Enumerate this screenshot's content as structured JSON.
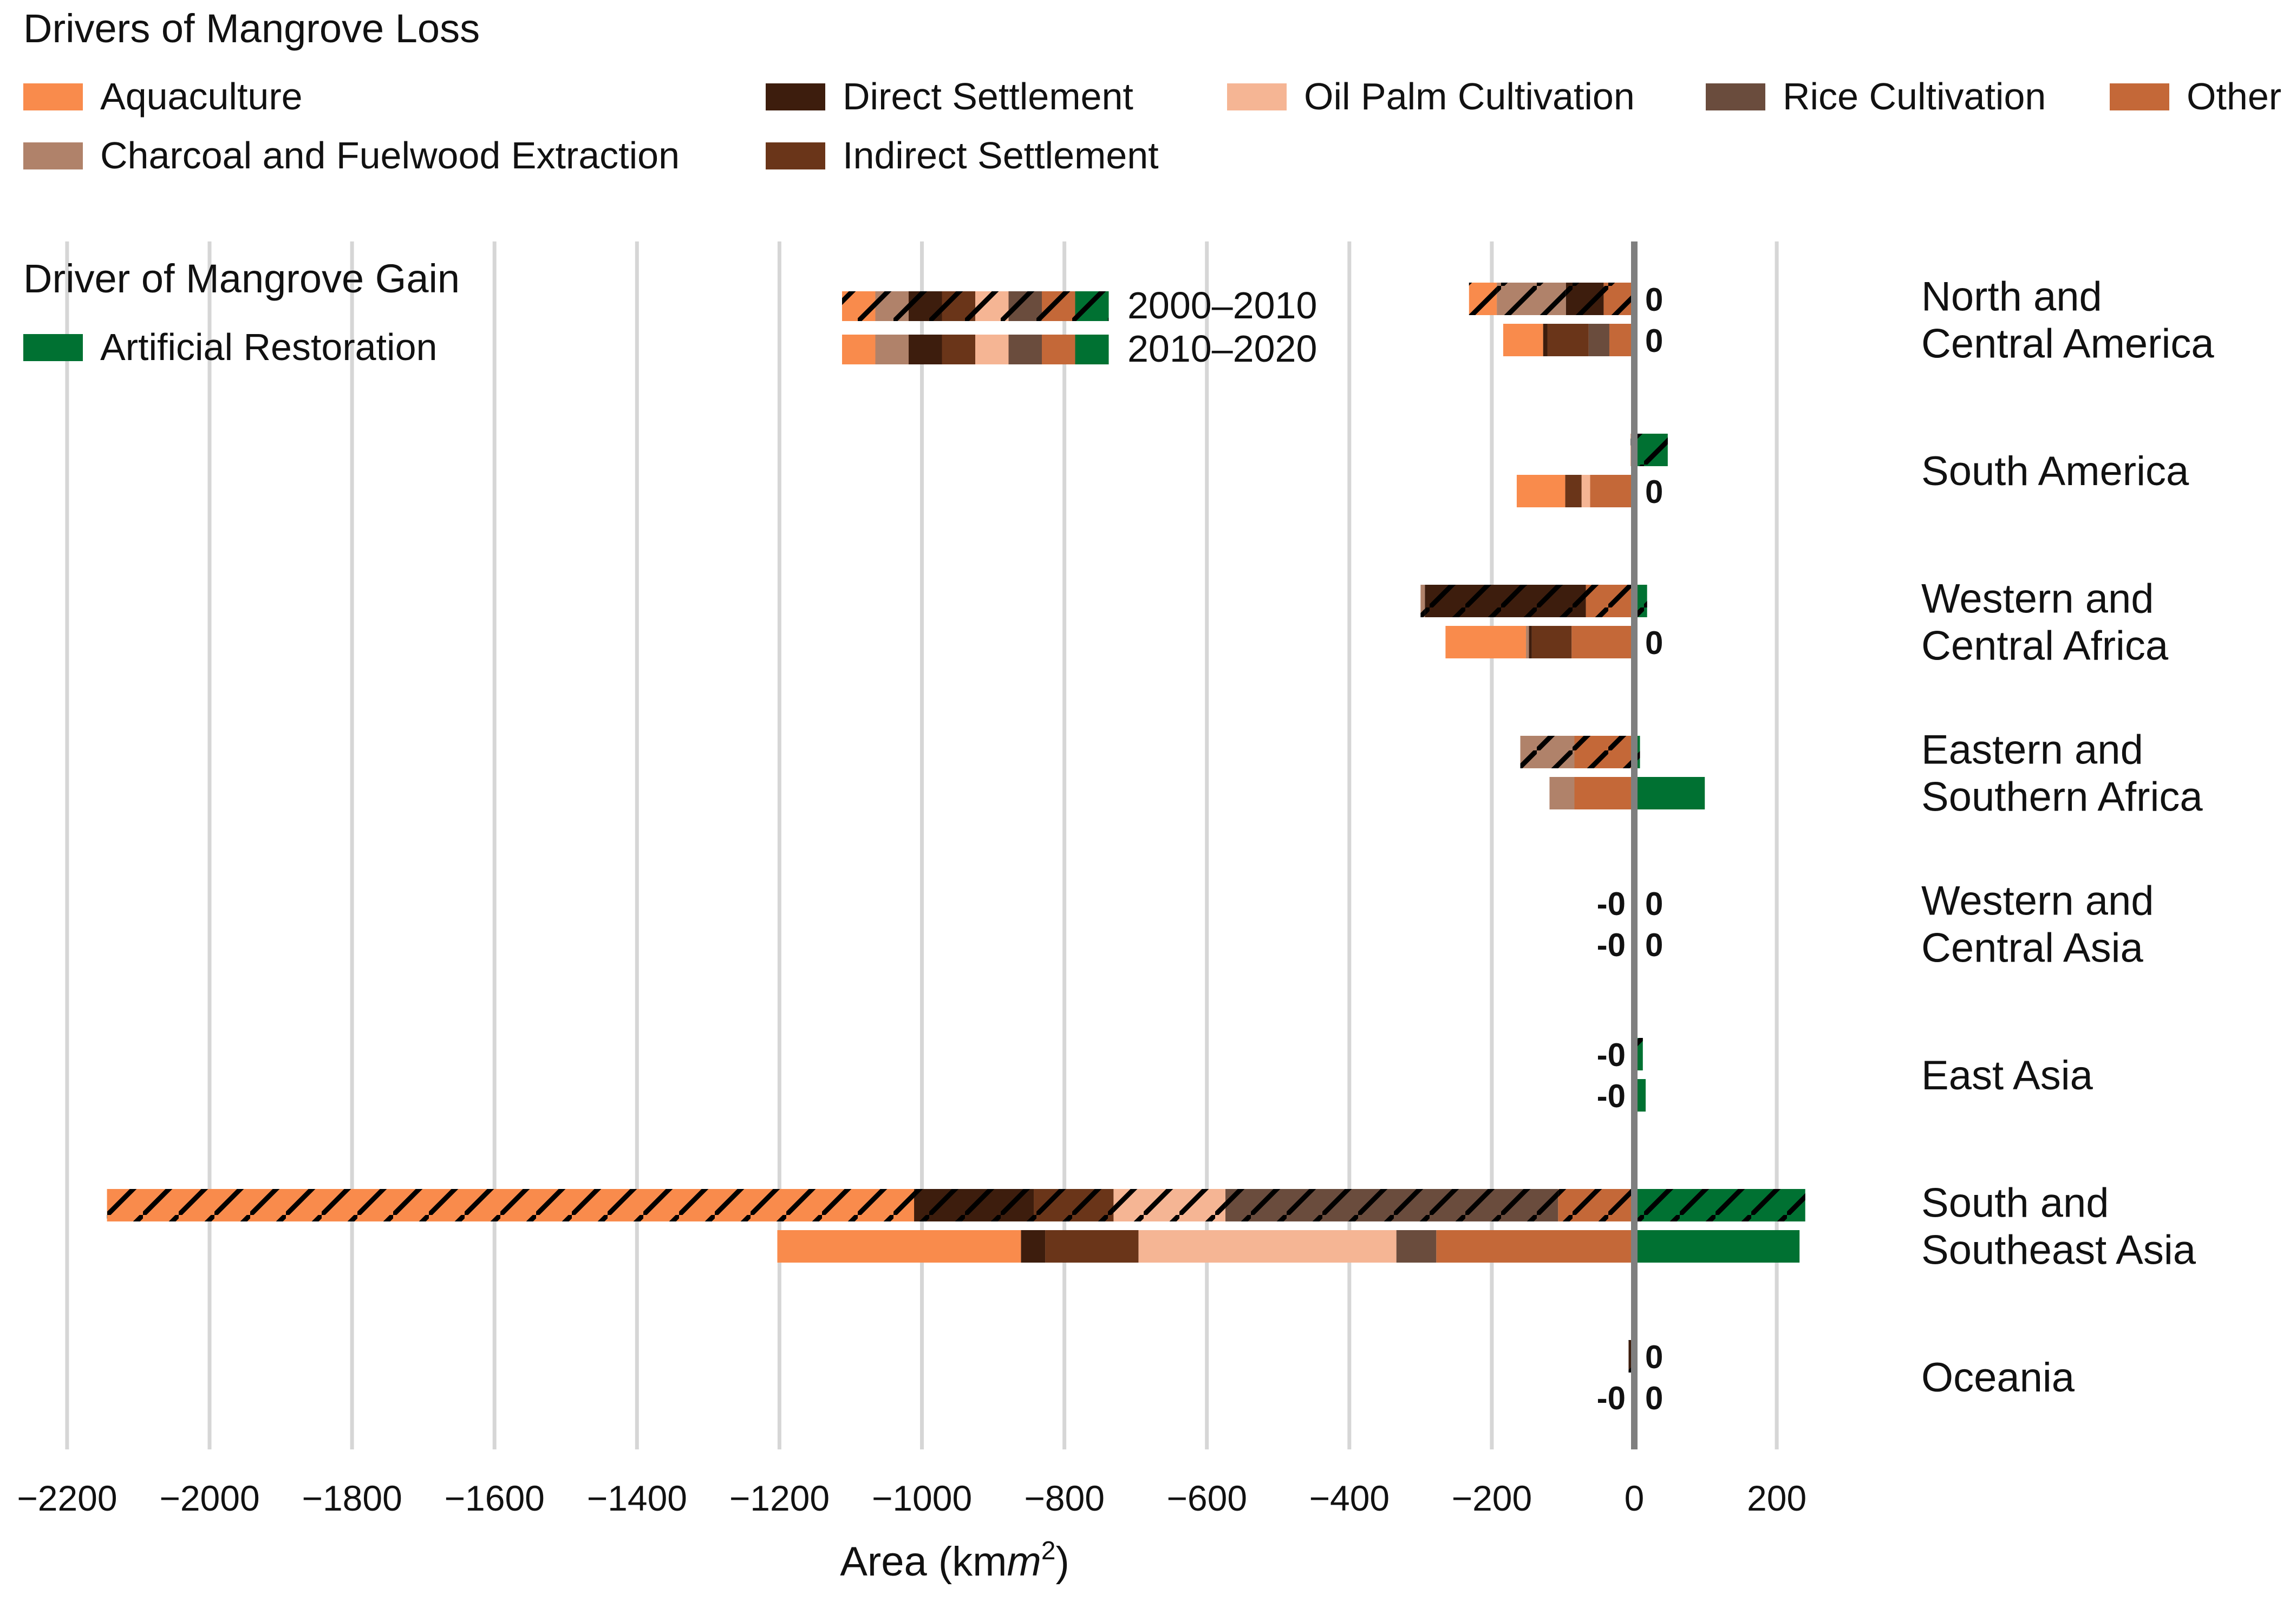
{
  "chart_data": {
    "type": "bar",
    "orientation": "horizontal-stacked-diverging",
    "xlabel": "Area (km",
    "xlabel_sup": "2",
    "xlabel_close": ")",
    "xlim": [
      -2200,
      240
    ],
    "xticks": [
      -2200,
      -2000,
      -1800,
      -1600,
      -1400,
      -1200,
      -1000,
      -800,
      -600,
      -400,
      -200,
      0,
      200
    ],
    "xtick_labels": [
      "−2200",
      "−2000",
      "−1800",
      "−1600",
      "−1400",
      "−1200",
      "−1000",
      "−800",
      "−600",
      "−400",
      "−200",
      "0",
      "200"
    ],
    "grid": "vertical",
    "loss_legend_title": "Drivers of Mangrove Loss",
    "gain_legend_title": "Driver of Mangrove Gain",
    "periods": [
      {
        "label": "2000–2010",
        "hatched": true
      },
      {
        "label": "2010–2020",
        "hatched": false
      }
    ],
    "regions": [
      {
        "lines": [
          "North and",
          "Central America"
        ],
        "labels": [
          {
            "loss": "",
            "gain": "0"
          },
          {
            "loss": "",
            "gain": "0"
          }
        ]
      },
      {
        "lines": [
          "South America"
        ],
        "labels": [
          {
            "loss": "",
            "gain": ""
          },
          {
            "loss": "",
            "gain": "0"
          }
        ]
      },
      {
        "lines": [
          "Western and",
          "Central Africa"
        ],
        "labels": [
          {
            "loss": "",
            "gain": ""
          },
          {
            "loss": "",
            "gain": "0"
          }
        ]
      },
      {
        "lines": [
          "Eastern and",
          "Southern Africa"
        ],
        "labels": [
          {
            "loss": "",
            "gain": ""
          },
          {
            "loss": "",
            "gain": ""
          }
        ]
      },
      {
        "lines": [
          "Western and",
          "Central Asia"
        ],
        "labels": [
          {
            "loss": "-0",
            "gain": "0"
          },
          {
            "loss": "-0",
            "gain": "0"
          }
        ]
      },
      {
        "lines": [
          "East Asia"
        ],
        "labels": [
          {
            "loss": "-0",
            "gain": ""
          },
          {
            "loss": "-0",
            "gain": ""
          }
        ]
      },
      {
        "lines": [
          "South and",
          "Southeast Asia"
        ],
        "labels": [
          {
            "loss": "",
            "gain": ""
          },
          {
            "loss": "",
            "gain": ""
          }
        ]
      },
      {
        "lines": [
          "Oceania"
        ],
        "labels": [
          {
            "loss": "",
            "gain": "0"
          },
          {
            "loss": "-0",
            "gain": "0"
          }
        ]
      }
    ],
    "loss_series": [
      {
        "name": "Aquaculture",
        "color": "#F98B4C",
        "values": [
          [
            -39,
            0,
            0,
            0,
            0,
            0,
            -1133,
            0
          ],
          [
            -56,
            -68,
            -113,
            0,
            0,
            0,
            -342,
            0
          ]
        ]
      },
      {
        "name": "Charcoal and Fuelwood Extraction",
        "color": "#B0826A",
        "values": [
          [
            -97,
            0,
            -6,
            -76,
            0,
            0,
            0,
            0
          ],
          [
            0,
            0,
            -4,
            -35,
            0,
            0,
            0,
            0
          ]
        ]
      },
      {
        "name": "Direct Settlement",
        "color": "#3D1D0D",
        "values": [
          [
            -53,
            0,
            -226,
            0,
            0,
            0,
            -168,
            -8
          ],
          [
            -6,
            0,
            -4,
            0,
            0,
            0,
            -34,
            0
          ]
        ]
      },
      {
        "name": "Indirect Settlement",
        "color": "#6A3519",
        "values": [
          [
            0,
            0,
            0,
            0,
            0,
            0,
            -112,
            0
          ],
          [
            -58,
            -23,
            -56,
            0,
            0,
            0,
            -131,
            0
          ]
        ]
      },
      {
        "name": "Oil Palm Cultivation",
        "color": "#F5B594",
        "values": [
          [
            0,
            0,
            0,
            0,
            0,
            0,
            -157,
            0
          ],
          [
            0,
            -12,
            0,
            0,
            0,
            0,
            -362,
            0
          ]
        ]
      },
      {
        "name": "Rice Cultivation",
        "color": "#6A4C3D",
        "values": [
          [
            0,
            0,
            0,
            0,
            0,
            0,
            -467,
            0
          ],
          [
            -29,
            0,
            0,
            0,
            0,
            0,
            -56,
            0
          ]
        ]
      },
      {
        "name": "Other",
        "color": "#C46838",
        "values": [
          [
            -43,
            -5,
            -68,
            -84,
            0,
            0,
            -107,
            0
          ],
          [
            -35,
            -62,
            -88,
            -84,
            0,
            0,
            -278,
            0
          ]
        ]
      }
    ],
    "gain_series": [
      {
        "name": "Artificial Restoration",
        "color": "#007132",
        "values": [
          [
            0,
            47,
            18,
            8,
            0,
            12,
            240,
            0
          ],
          [
            0,
            0,
            0,
            99,
            0,
            16,
            232,
            0
          ]
        ]
      }
    ],
    "zero_line_color": "#7F7F7F"
  }
}
